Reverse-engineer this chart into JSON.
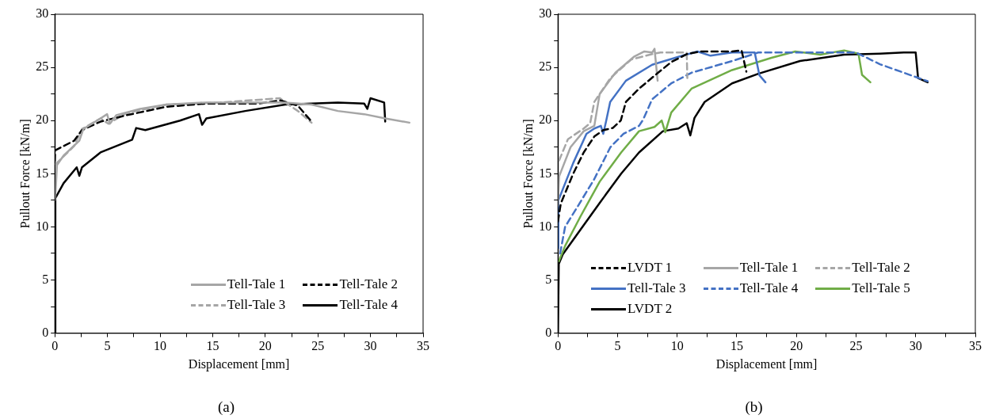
{
  "chart_data": [
    {
      "type": "line",
      "xlabel": "Displacement [mm]",
      "ylabel": "Pullout Force [kN/m]",
      "annotations": [
        "(a)"
      ],
      "xlim": [
        0,
        35
      ],
      "ylim": [
        0,
        30
      ],
      "xticks": [
        0,
        {
          "value": 2.5,
          "label": null
        },
        5,
        {
          "value": 7.5,
          "label": null
        },
        10,
        {
          "value": 12.5,
          "label": null
        },
        15,
        {
          "value": 17.5,
          "label": null
        },
        20,
        {
          "value": 22.5,
          "label": null
        },
        25,
        {
          "value": 27.5,
          "label": null
        },
        30,
        {
          "value": 32.5,
          "label": null
        },
        35
      ],
      "yticks": [
        0,
        {
          "value": 2.5,
          "label": null
        },
        5,
        {
          "value": 7.5,
          "label": null
        },
        10,
        {
          "value": 12.5,
          "label": null
        },
        15,
        {
          "value": 17.5,
          "label": null
        },
        20,
        {
          "value": 22.5,
          "label": null
        },
        25,
        {
          "value": 27.5,
          "label": null
        },
        30
      ],
      "grid": false,
      "legend": "bottom right",
      "marker": "none",
      "series": [
        {
          "name": "Tell-Tale 1",
          "color": "#a6a6a6",
          "line_style": "solid",
          "x": [
            0,
            0.08,
            0.2,
            0.83,
            2.33,
            2.71,
            4.34,
            4.97,
            5.22,
            5.84,
            8.1,
            10.6,
            14.4,
            19.4,
            21.9,
            24.4,
            26.9,
            29.4,
            31.4,
            33.7
          ],
          "values": [
            12.5,
            13.4,
            15.8,
            16.7,
            18.1,
            19.2,
            20.2,
            20.6,
            19.7,
            20.5,
            21.1,
            21.5,
            21.7,
            21.7,
            21.7,
            21.5,
            20.9,
            20.6,
            20.2,
            19.8
          ]
        },
        {
          "name": "Tell-Tale 2",
          "color": "#000000",
          "line_style": "dashed",
          "x": [
            0,
            0.03,
            1.83,
            2.58,
            4.34,
            6.8,
            10.6,
            14.4,
            19.4,
            21.4,
            23.1,
            24.4
          ],
          "values": [
            16.2,
            17.2,
            18.1,
            19.1,
            19.9,
            20.5,
            21.3,
            21.6,
            21.6,
            21.9,
            21.4,
            19.9
          ]
        },
        {
          "name": "Tell-Tale 3",
          "color": "#a6a6a6",
          "line_style": "dashed",
          "x": [
            0.08,
            1.83,
            2.58,
            4.34,
            5.1,
            6.8,
            10.6,
            15.7,
            21.4,
            21.9,
            23.1,
            24.4
          ],
          "values": [
            15.9,
            17.6,
            19.2,
            20.2,
            19.7,
            20.7,
            21.5,
            21.7,
            22.1,
            21.7,
            20.9,
            19.8
          ]
        },
        {
          "name": "Tell-Tale 4",
          "color": "#000000",
          "line_style": "solid",
          "x": [
            0,
            0.05,
            0.83,
            2.08,
            2.33,
            2.58,
            4.34,
            7.35,
            7.73,
            8.6,
            11.9,
            13.7,
            14.0,
            14.4,
            18.1,
            21.9,
            26.9,
            29.4,
            29.7,
            30.0,
            31.3,
            31.4
          ],
          "values": [
            0,
            12.7,
            14.1,
            15.6,
            14.8,
            15.6,
            17.0,
            18.2,
            19.3,
            19.1,
            20.0,
            20.6,
            19.6,
            20.2,
            20.9,
            21.5,
            21.7,
            21.6,
            21.1,
            22.1,
            21.7,
            19.9
          ]
        }
      ]
    },
    {
      "type": "line",
      "xlabel": "Displacement [mm]",
      "ylabel": "Pullout Force [kN/m]",
      "annotations": [
        "(b)"
      ],
      "xlim": [
        0,
        35
      ],
      "ylim": [
        0,
        30
      ],
      "xticks": [
        0,
        {
          "value": 2.5,
          "label": null
        },
        5,
        {
          "value": 7.5,
          "label": null
        },
        10,
        {
          "value": 12.5,
          "label": null
        },
        15,
        {
          "value": 17.5,
          "label": null
        },
        20,
        {
          "value": 22.5,
          "label": null
        },
        25,
        {
          "value": 27.5,
          "label": null
        },
        30,
        {
          "value": 32.5,
          "label": null
        },
        35
      ],
      "yticks": [
        0,
        {
          "value": 2.5,
          "label": null
        },
        5,
        {
          "value": 7.5,
          "label": null
        },
        10,
        {
          "value": 12.5,
          "label": null
        },
        15,
        {
          "value": 17.5,
          "label": null
        },
        20,
        {
          "value": 22.5,
          "label": null
        },
        25,
        {
          "value": 27.5,
          "label": null
        },
        30
      ],
      "grid": false,
      "legend": "bottom left",
      "marker": "none",
      "series": [
        {
          "name": "LVDT 1",
          "color": "#000000",
          "line_style": "dashed",
          "x": [
            0,
            0.24,
            1.28,
            2.16,
            3.05,
            3.8,
            4.6,
            5.27,
            5.7,
            6.8,
            8.4,
            9.5,
            10.8,
            11.9,
            14.6,
            15.4,
            15.8
          ],
          "values": [
            10.5,
            12.2,
            15.0,
            17.0,
            18.5,
            19.1,
            19.3,
            20.0,
            21.75,
            23.0,
            24.5,
            25.5,
            26.25,
            26.5,
            26.5,
            26.6,
            24.6
          ]
        },
        {
          "name": "Tell-Tale 1",
          "color": "#a6a6a6",
          "line_style": "solid",
          "x": [
            0,
            0.1,
            1.06,
            2.16,
            3.05,
            3.5,
            4.82,
            6.37,
            7.25,
            7.9,
            8.1,
            8.36
          ],
          "values": [
            12,
            14.75,
            17.5,
            19.0,
            19.5,
            22.5,
            24.5,
            26.0,
            26.5,
            26.4,
            26.75,
            23.75
          ]
        },
        {
          "name": "Tell-Tale 2",
          "color": "#a6a6a6",
          "line_style": "dashed",
          "x": [
            0.1,
            0.84,
            2.16,
            2.7,
            3.05,
            4.4,
            6.15,
            7.9,
            8.6,
            10.8,
            10.85
          ],
          "values": [
            16.25,
            18.25,
            19.25,
            19.75,
            21.75,
            24.0,
            25.75,
            26.25,
            26.4,
            26.4,
            24.0
          ]
        },
        {
          "name": "Tell-Tale 3",
          "color": "#4472c4",
          "line_style": "solid",
          "x": [
            0,
            0.04,
            1.28,
            2.39,
            3.05,
            3.6,
            3.8,
            4.05,
            4.38,
            5.7,
            7.9,
            10.1,
            11.7,
            12.8,
            14.6,
            16.5,
            16.9,
            17.4
          ],
          "values": [
            8,
            12.5,
            16.0,
            18.75,
            19.25,
            19.5,
            18.75,
            20.0,
            21.75,
            23.75,
            25.25,
            26.0,
            26.5,
            26.1,
            26.4,
            26.4,
            24.25,
            23.6
          ]
        },
        {
          "name": "Tell-Tale 4",
          "color": "#4472c4",
          "line_style": "dashed",
          "x": [
            0.18,
            0.6,
            1.7,
            3.05,
            4.4,
            5.5,
            6.8,
            7.15,
            7.9,
            9.5,
            11.2,
            14.6,
            16.8,
            20.3,
            25,
            27,
            29,
            31
          ],
          "values": [
            7.5,
            10.0,
            12.0,
            14.5,
            17.5,
            18.75,
            19.5,
            20.1,
            22.0,
            23.5,
            24.5,
            25.6,
            26.4,
            26.4,
            26.4,
            25.3,
            24.5,
            23.7
          ]
        },
        {
          "name": "Tell-Tale 5",
          "color": "#70ad47",
          "line_style": "solid",
          "x": [
            0.07,
            0.62,
            1.9,
            3.5,
            5.3,
            6.8,
            8.1,
            8.7,
            9.0,
            9.5,
            11.2,
            14.6,
            17.9,
            19.9,
            22,
            24,
            25.2,
            25.5,
            26.2
          ],
          "values": [
            6.75,
            8.25,
            11.0,
            14.25,
            17.0,
            19.0,
            19.4,
            20.0,
            18.9,
            20.75,
            23.0,
            24.75,
            25.9,
            26.5,
            26.2,
            26.6,
            26.3,
            24.3,
            23.6
          ]
        },
        {
          "name": "LVDT 2",
          "color": "#000000",
          "line_style": "solid",
          "x": [
            0,
            0.07,
            0.4,
            1.9,
            3.5,
            5.3,
            6.8,
            8.8,
            10.1,
            10.8,
            11.1,
            11.45,
            12.3,
            14.6,
            16.8,
            20.3,
            24,
            27,
            29,
            30,
            30.2,
            31
          ],
          "values": [
            0,
            6.5,
            7.4,
            9.75,
            12.25,
            15.0,
            17.0,
            19.0,
            19.25,
            19.75,
            18.6,
            20.25,
            21.75,
            23.5,
            24.4,
            25.6,
            26.2,
            26.3,
            26.4,
            26.4,
            24.0,
            23.6
          ]
        }
      ]
    }
  ]
}
